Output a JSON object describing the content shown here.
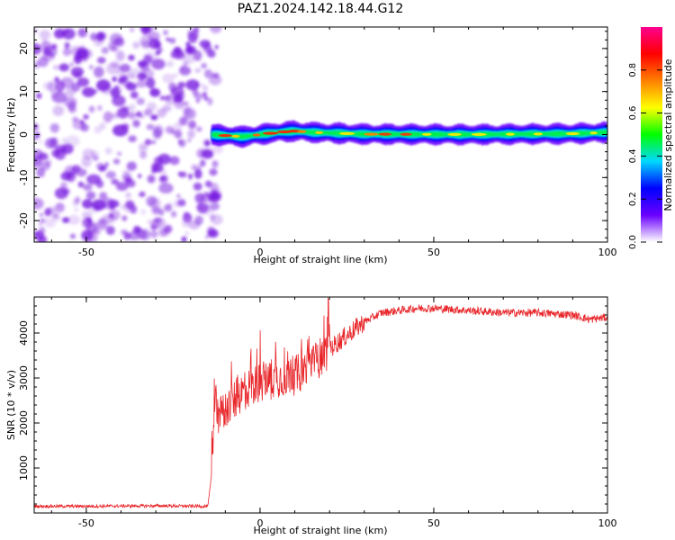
{
  "title": "PAZ1.2024.142.18.44.G12",
  "colors": {
    "snr_line": "#e8262a",
    "axis": "#000000",
    "speckle": "#7a1ee0"
  },
  "chart_data": [
    {
      "type": "heatmap",
      "xlabel": "Height of straight line (km)",
      "ylabel": "Frequency (Hz)",
      "xlim": [
        -65,
        100
      ],
      "ylim": [
        -25,
        25
      ],
      "x_ticks": [
        {
          "value": -50,
          "label": "-50"
        },
        {
          "value": 0,
          "label": "0"
        },
        {
          "value": 50,
          "label": "50"
        },
        {
          "value": 100,
          "label": "100"
        }
      ],
      "y_ticks": [
        {
          "value": -20,
          "label": "-20"
        },
        {
          "value": -10,
          "label": "-10"
        },
        {
          "value": 0,
          "label": "0"
        },
        {
          "value": 10,
          "label": "10"
        },
        {
          "value": 20,
          "label": "20"
        }
      ],
      "noise_region_x": [
        -65,
        -14
      ],
      "signal_start_x": -14,
      "signal_center_freq": [
        {
          "x": -14,
          "f": 0.0
        },
        {
          "x": -5,
          "f": -0.5
        },
        {
          "x": 0,
          "f": 0.0
        },
        {
          "x": 5,
          "f": 0.5
        },
        {
          "x": 10,
          "f": 0.8
        },
        {
          "x": 15,
          "f": 0.5
        },
        {
          "x": 30,
          "f": 0.1
        },
        {
          "x": 60,
          "f": 0.0
        },
        {
          "x": 90,
          "f": 0.2
        },
        {
          "x": 100,
          "f": 0.5
        }
      ],
      "colorbar": {
        "label": "Normalized spectral amplitude",
        "range": [
          0.0,
          1.0
        ],
        "ticks": [
          {
            "value": 0.0,
            "label": "0.0"
          },
          {
            "value": 0.2,
            "label": "0.2"
          },
          {
            "value": 0.4,
            "label": "0.4"
          },
          {
            "value": 0.6,
            "label": "0.6"
          },
          {
            "value": 0.8,
            "label": "0.8"
          }
        ],
        "colormap": [
          "#ffffff",
          "#6a00ff",
          "#0000ff",
          "#00d8ff",
          "#00ff00",
          "#ffff00",
          "#ff8000",
          "#ff0000",
          "#ff0090"
        ]
      }
    },
    {
      "type": "line",
      "xlabel": "Height of straight line (km)",
      "ylabel": "SNR (10 * v/v)",
      "xlim": [
        -65,
        100
      ],
      "ylim": [
        0,
        4800
      ],
      "x_ticks": [
        {
          "value": -50,
          "label": "-50"
        },
        {
          "value": 0,
          "label": "0"
        },
        {
          "value": 50,
          "label": "50"
        },
        {
          "value": 100,
          "label": "100"
        }
      ],
      "y_ticks": [
        {
          "value": 1000,
          "label": "1000"
        },
        {
          "value": 2000,
          "label": "2000"
        },
        {
          "value": 3000,
          "label": "3000"
        },
        {
          "value": 4000,
          "label": "4000"
        }
      ],
      "series": [
        {
          "x": [
            -65,
            -50,
            -30,
            -15,
            -14,
            -13,
            -12,
            -10,
            -5,
            0,
            5,
            10,
            15,
            20,
            25,
            30,
            35,
            40,
            45,
            50,
            60,
            70,
            80,
            90,
            95,
            100
          ],
          "y": [
            150,
            150,
            160,
            150,
            800,
            2500,
            2100,
            2300,
            2700,
            2900,
            3000,
            3050,
            3300,
            3650,
            3950,
            4250,
            4450,
            4500,
            4550,
            4550,
            4500,
            4450,
            4450,
            4400,
            4300,
            4350
          ]
        }
      ]
    }
  ]
}
